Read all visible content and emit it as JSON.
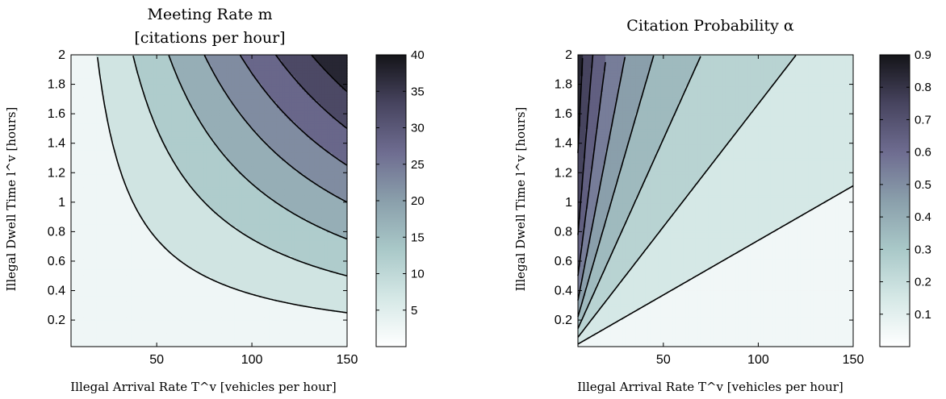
{
  "chart_data": [
    {
      "type": "contour",
      "title_line1": "Meeting Rate m",
      "title_line2": "[citations per hour]",
      "xlabel": "Illegal Arrival Rate T^v [vehicles per hour]",
      "ylabel": "Illegal Dwell Time l^v [hours]",
      "xlim": [
        5,
        150
      ],
      "ylim": [
        0.02,
        2
      ],
      "xticks": [
        "50",
        "100",
        "150"
      ],
      "xtick_values": [
        50,
        100,
        150
      ],
      "yticks": [
        "0.2",
        "0.4",
        "0.6",
        "0.8",
        "1",
        "1.2",
        "1.4",
        "1.6",
        "1.8",
        "2"
      ],
      "ytick_values": [
        0.2,
        0.4,
        0.6,
        0.8,
        1,
        1.2,
        1.4,
        1.6,
        1.8,
        2
      ],
      "contour_levels": [
        5,
        10,
        15,
        20,
        25,
        30,
        35,
        40
      ],
      "colorbar": {
        "min": 0,
        "max": 40,
        "ticks": [
          "5",
          "10",
          "15",
          "20",
          "25",
          "30",
          "35",
          "40"
        ],
        "tick_values": [
          5,
          10,
          15,
          20,
          25,
          30,
          35,
          40
        ]
      },
      "colormap": [
        "#ffffff",
        "#d5e8e6",
        "#a9c8c8",
        "#8a9fab",
        "#6e6c90",
        "#47445f",
        "#141418"
      ]
    },
    {
      "type": "contour",
      "title_line1": "Citation Probability α",
      "title_line2": "",
      "xlabel": "Illegal Arrival Rate T^v [vehicles per hour]",
      "ylabel": "Illegal Dwell Time l^v [hours]",
      "xlim": [
        5,
        150
      ],
      "ylim": [
        0.02,
        2
      ],
      "xticks": [
        "50",
        "100",
        "150"
      ],
      "xtick_values": [
        50,
        100,
        150
      ],
      "yticks": [
        "0.2",
        "0.4",
        "0.6",
        "0.8",
        "1",
        "1.2",
        "1.4",
        "1.6",
        "1.8",
        "2"
      ],
      "ytick_values": [
        0.2,
        0.4,
        0.6,
        0.8,
        1,
        1.2,
        1.4,
        1.6,
        1.8,
        2
      ],
      "contour_levels": [
        0.1,
        0.2,
        0.3,
        0.4,
        0.5,
        0.6,
        0.7,
        0.8
      ],
      "colorbar": {
        "min": 0,
        "max": 0.9,
        "ticks": [
          "0.1",
          "0.2",
          "0.3",
          "0.4",
          "0.5",
          "0.6",
          "0.7",
          "0.8",
          "0.9"
        ],
        "tick_values": [
          0.1,
          0.2,
          0.3,
          0.4,
          0.5,
          0.6,
          0.7,
          0.8,
          0.9
        ]
      },
      "colormap": [
        "#ffffff",
        "#d5e8e6",
        "#a9c8c8",
        "#8a9fab",
        "#6e6c90",
        "#47445f",
        "#141418"
      ]
    }
  ]
}
